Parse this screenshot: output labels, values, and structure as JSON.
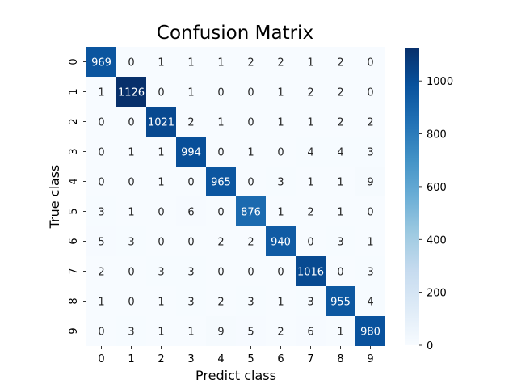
{
  "chart_data": {
    "type": "heatmap",
    "title": "Confusion Matrix",
    "xlabel": "Predict class",
    "ylabel": "True class",
    "x_categories": [
      "0",
      "1",
      "2",
      "3",
      "4",
      "5",
      "6",
      "7",
      "8",
      "9"
    ],
    "y_categories": [
      "0",
      "1",
      "2",
      "3",
      "4",
      "5",
      "6",
      "7",
      "8",
      "9"
    ],
    "values": [
      [
        969,
        0,
        1,
        1,
        1,
        2,
        2,
        1,
        2,
        0
      ],
      [
        1,
        1126,
        0,
        1,
        0,
        0,
        1,
        2,
        2,
        0
      ],
      [
        0,
        0,
        1021,
        2,
        1,
        0,
        1,
        1,
        2,
        2
      ],
      [
        0,
        1,
        1,
        994,
        0,
        1,
        0,
        4,
        4,
        3
      ],
      [
        0,
        0,
        1,
        0,
        965,
        0,
        3,
        1,
        1,
        9
      ],
      [
        3,
        1,
        0,
        6,
        0,
        876,
        1,
        2,
        1,
        0
      ],
      [
        5,
        3,
        0,
        0,
        2,
        2,
        940,
        0,
        3,
        1
      ],
      [
        2,
        0,
        3,
        3,
        0,
        0,
        0,
        1016,
        0,
        3
      ],
      [
        1,
        0,
        1,
        3,
        2,
        3,
        1,
        3,
        955,
        4
      ],
      [
        0,
        3,
        1,
        1,
        9,
        5,
        2,
        6,
        1,
        980
      ]
    ],
    "colormap": "Blues",
    "colorbar": {
      "range": [
        0,
        1126
      ],
      "ticks": [
        0,
        200,
        400,
        600,
        800,
        1000
      ]
    },
    "colors": {
      "low": "#f7fbff",
      "high": "#08306b"
    }
  }
}
